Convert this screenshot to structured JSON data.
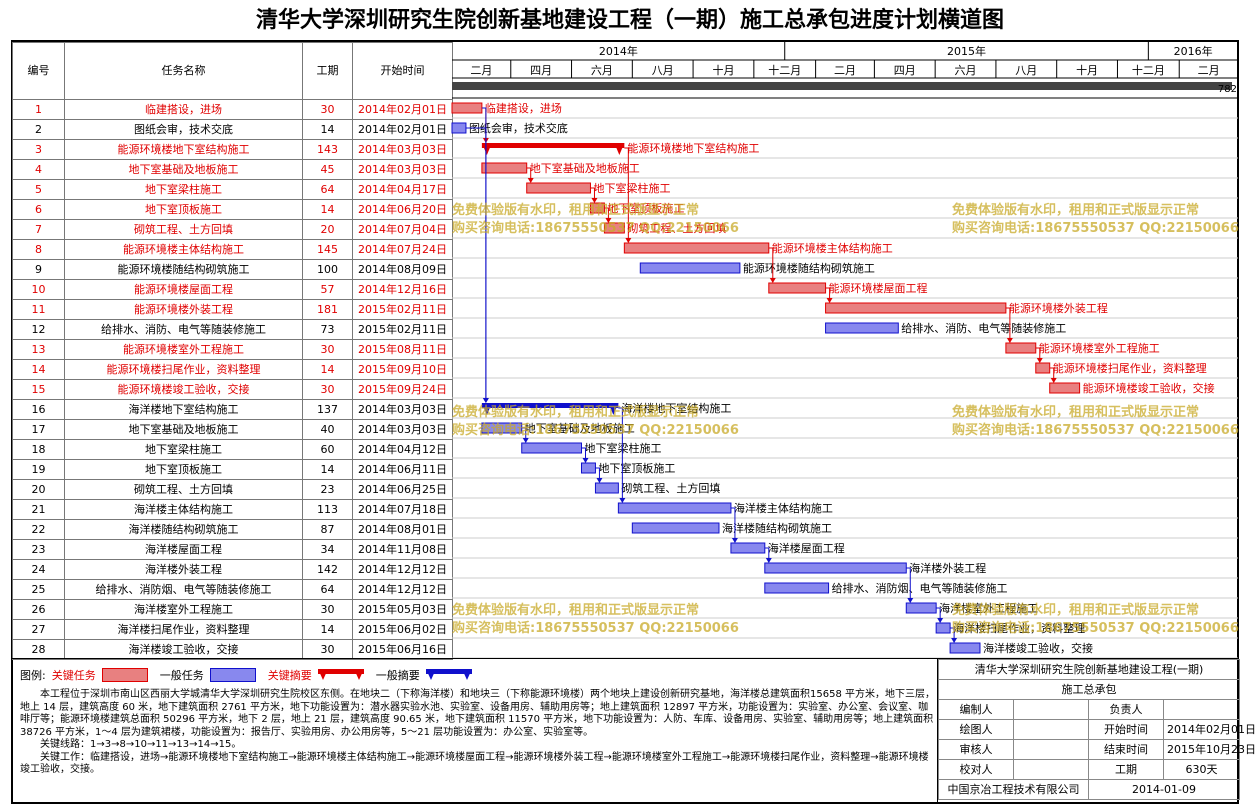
{
  "title": "清华大学深圳研究生院创新基地建设工程（一期）施工总承包进度计划横道图",
  "headers": {
    "no": "编号",
    "name": "任务名称",
    "dur": "工期",
    "start": "开始时间"
  },
  "timeline": {
    "years": [
      "2014年",
      "2015年",
      "2016年"
    ],
    "months": [
      "二月",
      "四月",
      "六月",
      "八月",
      "十月",
      "十二月",
      "二月",
      "四月",
      "六月",
      "八月",
      "十月",
      "十二月",
      "二月"
    ],
    "ruler_tail": "782"
  },
  "colors": {
    "critical": "#e00000",
    "normal": "#1010cc",
    "critical_fill": "#e88080",
    "normal_fill": "#8888ee"
  },
  "chart_data": {
    "type": "gantt",
    "title": "清华大学深圳研究生院创新基地建设工程（一期）施工总承包进度计划横道图",
    "time_axis": {
      "start": "2014-02-01",
      "end": "2016-03-31"
    },
    "tasks": [
      {
        "no": "1",
        "name": "临建搭设，进场",
        "duration": "30",
        "start": "2014年02月01日",
        "type": "critical",
        "label": "临建搭设，进场"
      },
      {
        "no": "2",
        "name": "图纸会审，技术交底",
        "duration": "14",
        "start": "2014年02月01日",
        "type": "normal",
        "label": "图纸会审，技术交底"
      },
      {
        "no": "3",
        "name": "能源环境楼地下室结构施工",
        "duration": "143",
        "start": "2014年03月03日",
        "type": "critical_summary",
        "label": "能源环境楼地下室结构施工"
      },
      {
        "no": "4",
        "name": "地下室基础及地板施工",
        "duration": "45",
        "start": "2014年03月03日",
        "type": "critical",
        "label": "地下室基础及地板施工"
      },
      {
        "no": "5",
        "name": "地下室梁柱施工",
        "duration": "64",
        "start": "2014年04月17日",
        "type": "critical",
        "label": "地下室梁柱施工"
      },
      {
        "no": "6",
        "name": "地下室顶板施工",
        "duration": "14",
        "start": "2014年06月20日",
        "type": "critical",
        "label": "地下室顶板施工"
      },
      {
        "no": "7",
        "name": "砌筑工程、土方回填",
        "duration": "20",
        "start": "2014年07月04日",
        "type": "critical",
        "label": "砌筑工程、土方回填"
      },
      {
        "no": "8",
        "name": "能源环境楼主体结构施工",
        "duration": "145",
        "start": "2014年07月24日",
        "type": "critical",
        "label": "能源环境楼主体结构施工"
      },
      {
        "no": "9",
        "name": "能源环境楼随结构砌筑施工",
        "duration": "100",
        "start": "2014年08月09日",
        "type": "normal",
        "label": "能源环境楼随结构砌筑施工"
      },
      {
        "no": "10",
        "name": "能源环境楼屋面工程",
        "duration": "57",
        "start": "2014年12月16日",
        "type": "critical",
        "label": "能源环境楼屋面工程"
      },
      {
        "no": "11",
        "name": "能源环境楼外装工程",
        "duration": "181",
        "start": "2015年02月11日",
        "type": "critical",
        "label": "能源环境楼外装工程"
      },
      {
        "no": "12",
        "name": "给排水、消防、电气等随装修施工",
        "duration": "73",
        "start": "2015年02月11日",
        "type": "normal",
        "label": "给排水、消防、电气等随装修施工"
      },
      {
        "no": "13",
        "name": "能源环境楼室外工程施工",
        "duration": "30",
        "start": "2015年08月11日",
        "type": "critical",
        "label": "能源环境楼室外工程施工"
      },
      {
        "no": "14",
        "name": "能源环境楼扫尾作业，资料整理",
        "duration": "14",
        "start": "2015年09月10日",
        "type": "critical",
        "label": "能源环境楼扫尾作业，资料整理"
      },
      {
        "no": "15",
        "name": "能源环境楼竣工验收，交接",
        "duration": "30",
        "start": "2015年09月24日",
        "type": "critical",
        "label": "能源环境楼竣工验收，交接"
      },
      {
        "no": "16",
        "name": "海洋楼地下室结构施工",
        "duration": "137",
        "start": "2014年03月03日",
        "type": "normal_summary",
        "label": "海洋楼地下室结构施工"
      },
      {
        "no": "17",
        "name": "地下室基础及地板施工",
        "duration": "40",
        "start": "2014年03月03日",
        "type": "normal",
        "label": "地下室基础及地板施工"
      },
      {
        "no": "18",
        "name": "地下室梁柱施工",
        "duration": "60",
        "start": "2014年04月12日",
        "type": "normal",
        "label": "地下室梁柱施工"
      },
      {
        "no": "19",
        "name": "地下室顶板施工",
        "duration": "14",
        "start": "2014年06月11日",
        "type": "normal",
        "label": "地下室顶板施工"
      },
      {
        "no": "20",
        "name": "砌筑工程、土方回填",
        "duration": "23",
        "start": "2014年06月25日",
        "type": "normal",
        "label": "砌筑工程、土方回填"
      },
      {
        "no": "21",
        "name": "海洋楼主体结构施工",
        "duration": "113",
        "start": "2014年07月18日",
        "type": "normal",
        "label": "海洋楼主体结构施工"
      },
      {
        "no": "22",
        "name": "海洋楼随结构砌筑施工",
        "duration": "87",
        "start": "2014年08月01日",
        "type": "normal",
        "label": "海洋楼随结构砌筑施工"
      },
      {
        "no": "23",
        "name": "海洋楼屋面工程",
        "duration": "34",
        "start": "2014年11月08日",
        "type": "normal",
        "label": "海洋楼屋面工程"
      },
      {
        "no": "24",
        "name": "海洋楼外装工程",
        "duration": "142",
        "start": "2014年12月12日",
        "type": "normal",
        "label": "海洋楼外装工程"
      },
      {
        "no": "25",
        "name": "给排水、消防烟、电气等随装修施工",
        "duration": "64",
        "start": "2014年12月12日",
        "type": "normal",
        "label": "给排水、消防烟、电气等随装修施工"
      },
      {
        "no": "26",
        "name": "海洋楼室外工程施工",
        "duration": "30",
        "start": "2015年05月03日",
        "type": "normal",
        "label": "海洋楼室外工程施工"
      },
      {
        "no": "27",
        "name": "海洋楼扫尾作业，资料整理",
        "duration": "14",
        "start": "2015年06月02日",
        "type": "normal",
        "label": "海洋楼扫尾作业，资料整理"
      },
      {
        "no": "28",
        "name": "海洋楼竣工验收，交接",
        "duration": "30",
        "start": "2015年06月16日",
        "type": "normal",
        "label": "海洋楼竣工验收，交接"
      }
    ]
  },
  "watermark": {
    "line1": "免费体验版有水印，租用和正式版显示正常",
    "line2": "购买咨询电话:18675550537 QQ:22150066"
  },
  "legend": {
    "title": "图例:",
    "critical_task": "关键任务",
    "normal_task": "一般任务",
    "critical_summary": "关键摘要",
    "normal_summary": "一般摘要"
  },
  "description": {
    "p1": "本工程位于深圳市南山区西丽大学城清华大学深圳研究生院校区东侧。在地块二（下称海洋楼）和地块三（下称能源环境楼）两个地块上建设创新研究基地，海洋楼总建筑面积15658 平方米，地下三层，地上 14 层，建筑高度 60 米，地下建筑面积 2761 平方米，地下功能设置为：潜水器实验水池、实验室、设备用房、辅助用房等；地上建筑面积 12897 平方米，功能设置为：实验室、办公室、会议室、咖啡厅等；能源环境楼建筑总面积 50296 平方米，地下 2 层，地上 21 层，建筑高度 90.65 米，地下建筑面积 11570 平方米，地下功能设置为：人防、车库、设备用房、实验室、辅助用房等；地上建筑面积 38726 平方米，1～4 层为建筑裙楼，功能设置为：报告厅、实验用房、办公用房等，5～21 层功能设置为：办公室、实验室等。",
    "p2": "关键线路：1→3→8→10→11→13→14→15。",
    "p3": "关键工作：临建搭设，进场→能源环境楼地下室结构施工→能源环境楼主体结构施工→能源环境楼屋面工程→能源环境楼外装工程→能源环境楼室外工程施工→能源环境楼扫尾作业，资料整理→能源环境楼竣工验收，交接。"
  },
  "info": {
    "project": "清华大学深圳研究生院创新基地建设工程(一期)",
    "subtitle": "施工总承包",
    "compiler_label": "编制人",
    "compiler": "",
    "leader_label": "负责人",
    "leader": "",
    "drawer_label": "绘图人",
    "drawer": "",
    "start_label": "开始时间",
    "start": "2014年02月01日",
    "reviewer_label": "审核人",
    "reviewer": "",
    "end_label": "结束时间",
    "end": "2015年10月23日",
    "checker_label": "校对人",
    "checker": "",
    "dur_label": "工期",
    "dur": "630天",
    "company": "中国京冶工程技术有限公司",
    "date": "2014-01-09"
  }
}
